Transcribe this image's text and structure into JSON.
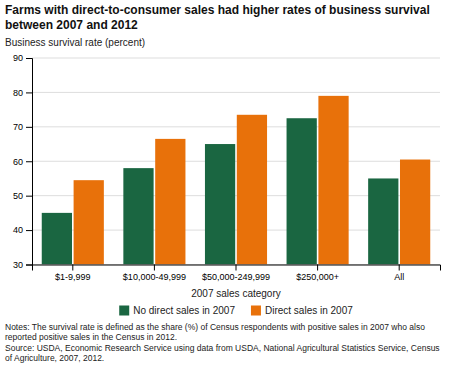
{
  "chart_data": {
    "type": "bar",
    "title": "Farms with direct-to-consumer sales had higher rates of business survival between 2007 and 2012",
    "ylabel": "Business survival rate (percent)",
    "xlabel": "2007 sales category",
    "categories": [
      "$1-9,999",
      "$10,000-49,999",
      "$50,000-249,999",
      "$250,000+",
      "All"
    ],
    "series": [
      {
        "name": "No direct sales in 2007",
        "color": "#1a6641",
        "values": [
          45,
          58,
          65,
          72.5,
          55
        ]
      },
      {
        "name": "Direct sales in 2007",
        "color": "#e8710a",
        "values": [
          54.5,
          66.5,
          73.5,
          79,
          60.5
        ]
      }
    ],
    "ylim": [
      30,
      90
    ],
    "yticks": [
      30,
      40,
      50,
      60,
      70,
      80,
      90
    ],
    "grid": true,
    "legend": "bottom",
    "annotations": [
      "Notes: The survival rate is defined as the share (%) of Census respondents with positive sales in 2007 who also reported positive sales in the Census in 2012.",
      "Source: USDA, Economic Research Service using data from USDA, National Agricultural Statistics Service, Census of Agriculture, 2007, 2012."
    ]
  }
}
